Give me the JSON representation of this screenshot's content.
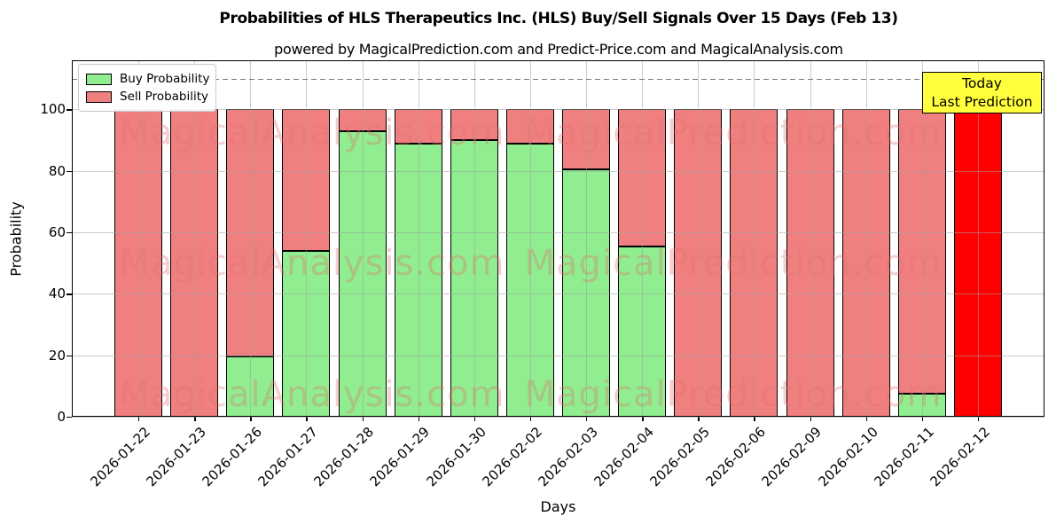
{
  "title": "Probabilities of HLS Therapeutics Inc. (HLS) Buy/Sell Signals Over 15 Days (Feb 13)",
  "subtitle": "powered by MagicalPrediction.com and Predict-Price.com and MagicalAnalysis.com",
  "legend": {
    "buy_label": "Buy Probability",
    "sell_label": "Sell Probability"
  },
  "annotation": {
    "line1": "Today",
    "line2": "Last Prediction",
    "bg_color": "#ffff3d"
  },
  "watermarks": {
    "left_text": "MagicalAnalysis.com",
    "right_text": "MagicalPrediction.com"
  },
  "colors": {
    "buy": "#90ee90",
    "sell": "#f08080",
    "today_bar": "#ff0000",
    "bar_edge": "#000000",
    "grid": "#a0a0a0",
    "dashed_line": "#7a7a7a"
  },
  "chart_data": {
    "type": "bar",
    "stacked": true,
    "title": "Probabilities of HLS Therapeutics Inc. (HLS) Buy/Sell Signals Over 15 Days (Feb 13)",
    "xlabel": "Days",
    "ylabel": "Probability",
    "categories": [
      "2026-01-22",
      "2026-01-23",
      "2026-01-26",
      "2026-01-27",
      "2026-01-28",
      "2026-01-29",
      "2026-01-30",
      "2026-02-02",
      "2026-02-03",
      "2026-02-04",
      "2026-02-05",
      "2026-02-06",
      "2026-02-09",
      "2026-02-10",
      "2026-02-11",
      "2026-02-12"
    ],
    "series": [
      {
        "name": "Buy Probability",
        "color": "#90ee90",
        "values": [
          0,
          0,
          19.5,
          54,
          93,
          89,
          90,
          89,
          80.5,
          55.5,
          0,
          0,
          0,
          0,
          7.5,
          0
        ]
      },
      {
        "name": "Sell Probability",
        "color": "#f08080",
        "values": [
          100,
          100,
          80.5,
          46,
          7,
          11,
          10,
          11,
          19.5,
          44.5,
          100,
          100,
          100,
          100,
          92.5,
          100
        ]
      }
    ],
    "today_index": 15,
    "today_bar_color": "#ff0000",
    "yticks": [
      0,
      20,
      40,
      60,
      80,
      100
    ],
    "ylim": [
      0,
      116
    ],
    "dashed_line_y": 110,
    "grid": true,
    "legend_position": "upper-left"
  }
}
